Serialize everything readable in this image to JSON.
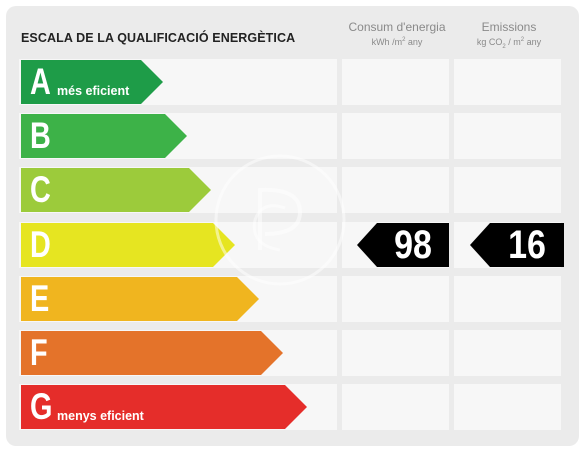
{
  "title": "ESCALA DE LA QUALIFICACIÓ ENERGÈTICA",
  "columns": {
    "consumption": {
      "label": "Consum d'energia",
      "unit_main": "kWh /m",
      "unit_exp": "2",
      "unit_tail": " any"
    },
    "emissions": {
      "label": "Emissions",
      "unit_main": "kg CO",
      "unit_sub": "2",
      "unit_mid": " / m",
      "unit_exp": "2",
      "unit_tail": " any"
    }
  },
  "classes": [
    {
      "letter": "A",
      "sublabel": "més eficient",
      "color": "#1e9c48"
    },
    {
      "letter": "B",
      "sublabel": "",
      "color": "#3db248"
    },
    {
      "letter": "C",
      "sublabel": "",
      "color": "#9ccb3b"
    },
    {
      "letter": "D",
      "sublabel": "",
      "color": "#e6e521"
    },
    {
      "letter": "E",
      "sublabel": "",
      "color": "#f0b51f"
    },
    {
      "letter": "F",
      "sublabel": "",
      "color": "#e4732a"
    },
    {
      "letter": "G",
      "sublabel": "menys eficient",
      "color": "#e52d2a"
    }
  ],
  "rating": {
    "class": "D",
    "consumption_value": "98",
    "emissions_value": "16",
    "tag_color": "#000000"
  }
}
